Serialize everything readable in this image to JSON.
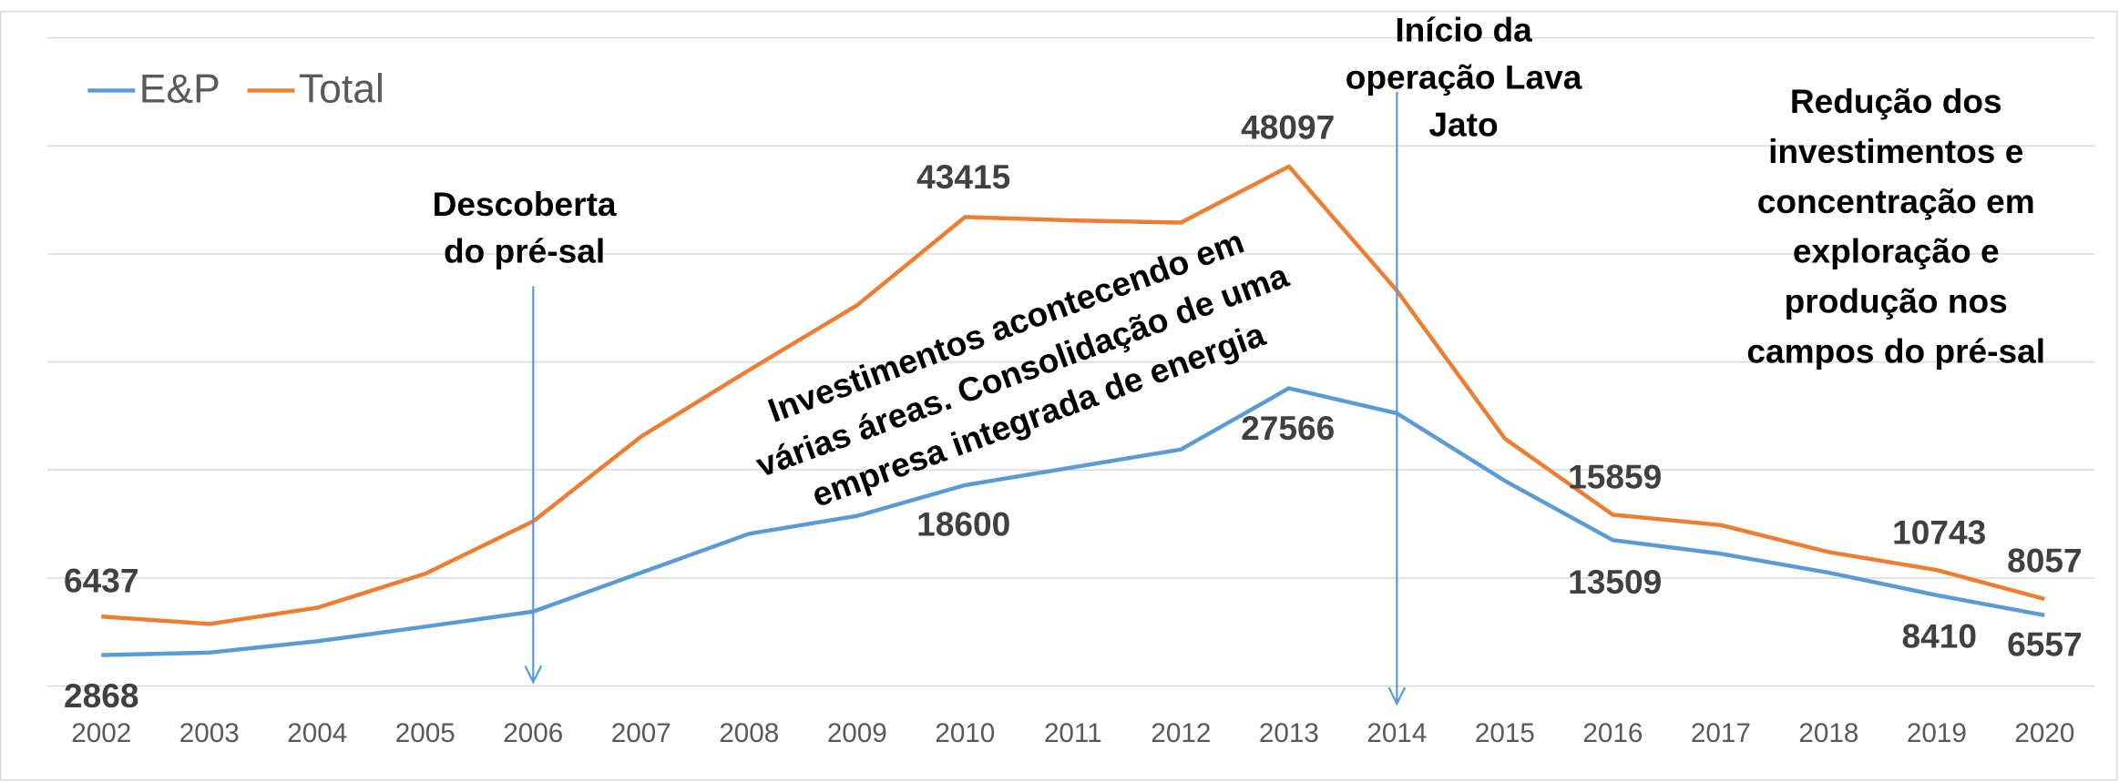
{
  "chart_data": {
    "type": "line",
    "categories": [
      "2002",
      "2003",
      "2004",
      "2005",
      "2006",
      "2007",
      "2008",
      "2009",
      "2010",
      "2011",
      "2012",
      "2013",
      "2014",
      "2015",
      "2016",
      "2017",
      "2018",
      "2019",
      "2020"
    ],
    "series": [
      {
        "name": "E&P",
        "color": "#5b9bd5",
        "values": [
          2868,
          3100,
          4150,
          5500,
          6900,
          10500,
          14100,
          15750,
          18600,
          20250,
          21900,
          27566,
          25250,
          19000,
          13509,
          12250,
          10500,
          8410,
          6557
        ]
      },
      {
        "name": "Total",
        "color": "#ed7d31",
        "values": [
          6437,
          5750,
          7250,
          10400,
          15250,
          23100,
          29250,
          35250,
          43415,
          43100,
          42900,
          48097,
          36600,
          22900,
          15859,
          14900,
          12400,
          10743,
          8057
        ]
      }
    ],
    "ylim": [
      0,
      60000
    ],
    "yticks": [
      0,
      10000,
      20000,
      30000,
      40000,
      50000,
      60000
    ],
    "grid": true,
    "legend": "top-left",
    "annotations": [
      {
        "lines": [
          "Descoberta",
          "do pré-sal"
        ],
        "x": "2006"
      },
      {
        "lines": [
          "Início da",
          "operação Lava",
          "Jato"
        ],
        "x": "2014"
      },
      {
        "lines": [
          "Investimentos acontecendo em",
          "várias áreas. Consolidação de uma",
          "empresa integrada de energia"
        ]
      },
      {
        "lines": [
          "Redução dos",
          "investimentos e",
          "concentração em",
          "exploração e",
          "produção nos",
          "campos do pré-sal"
        ]
      }
    ]
  }
}
